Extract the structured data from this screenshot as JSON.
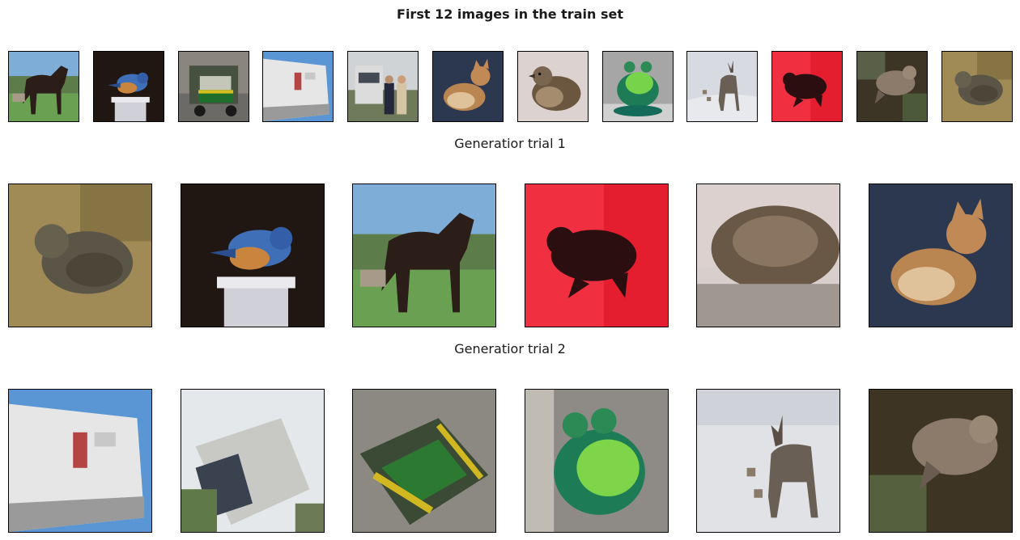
{
  "figure": {
    "title": "First 12 images in the train set",
    "rows": [
      {
        "title": "",
        "images": [
          {
            "name": "train-image-1-horse",
            "subject": "horse"
          },
          {
            "name": "train-image-2-bird",
            "subject": "bird"
          },
          {
            "name": "train-image-3-truck",
            "subject": "truck"
          },
          {
            "name": "train-image-4-truck",
            "subject": "truck"
          },
          {
            "name": "train-image-5-truck",
            "subject": "truck"
          },
          {
            "name": "train-image-6-cat",
            "subject": "cat"
          },
          {
            "name": "train-image-7-bird",
            "subject": "bird"
          },
          {
            "name": "train-image-8-frog",
            "subject": "frog"
          },
          {
            "name": "train-image-9-deer",
            "subject": "deer"
          },
          {
            "name": "train-image-10-frog",
            "subject": "frog"
          },
          {
            "name": "train-image-11-frog",
            "subject": "frog"
          },
          {
            "name": "train-image-12-frog",
            "subject": "frog"
          }
        ]
      },
      {
        "title": "Generatior trial 1",
        "images": [
          {
            "name": "trial1-image-1-frog",
            "subject": "frog"
          },
          {
            "name": "trial1-image-2-bird",
            "subject": "bird"
          },
          {
            "name": "trial1-image-3-horse",
            "subject": "horse"
          },
          {
            "name": "trial1-image-4-frog",
            "subject": "frog"
          },
          {
            "name": "trial1-image-5-bird",
            "subject": "bird"
          },
          {
            "name": "trial1-image-6-cat",
            "subject": "cat"
          }
        ]
      },
      {
        "title": "Generatior trial 2",
        "images": [
          {
            "name": "trial2-image-1-truck",
            "subject": "truck"
          },
          {
            "name": "trial2-image-2-truck",
            "subject": "truck"
          },
          {
            "name": "trial2-image-3-truck",
            "subject": "truck"
          },
          {
            "name": "trial2-image-4-frog",
            "subject": "frog"
          },
          {
            "name": "trial2-image-5-deer",
            "subject": "deer"
          },
          {
            "name": "trial2-image-6-frog",
            "subject": "frog"
          }
        ]
      }
    ]
  }
}
